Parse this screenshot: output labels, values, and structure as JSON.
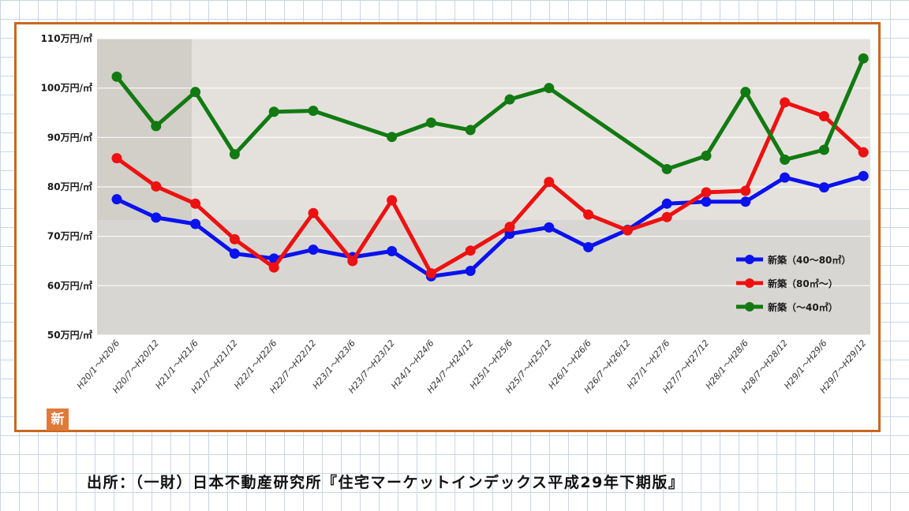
{
  "chart_data": {
    "type": "line",
    "title": "",
    "xlabel": "",
    "ylabel": "",
    "ylim": [
      50,
      110
    ],
    "y_ticks": [
      "50万円/㎡",
      "60万円/㎡",
      "70万円/㎡",
      "80万円/㎡",
      "90万円/㎡",
      "100万円/㎡",
      "110万円/㎡"
    ],
    "y_tick_values": [
      50,
      60,
      70,
      80,
      90,
      100,
      110
    ],
    "categories": [
      "H20/1～H20/6",
      "H20/7～H20/12",
      "H21/1～H21/6",
      "H21/7～H21/12",
      "H22/1～H22/6",
      "H22/7～H22/12",
      "H23/1～H23/6",
      "H23/7～H23/12",
      "H24/1～H24/6",
      "H24/7～H24/12",
      "H25/1～H25/6",
      "H25/7～H25/12",
      "H26/1～H26/6",
      "H26/7～H26/12",
      "H27/1～H27/6",
      "H27/7～H27/12",
      "H28/1～H28/6",
      "H28/7～H28/12",
      "H29/1～H29/6",
      "H29/7～H29/12"
    ],
    "series": [
      {
        "name": "新築（40～80㎡）",
        "color": "#0a12ee",
        "values": [
          77.5,
          73.8,
          72.5,
          66.5,
          65.5,
          67.3,
          65.8,
          67,
          61.9,
          63,
          70.5,
          71.8,
          67.8,
          71.3,
          76.6,
          77,
          77,
          81.9,
          79.9,
          82.2
        ]
      },
      {
        "name": "新築（80㎡～）",
        "color": "#ee1111",
        "values": [
          85.8,
          80.1,
          76.6,
          69.4,
          63.7,
          74.7,
          65,
          77.3,
          62.5,
          67.1,
          71.9,
          81,
          74.4,
          71.2,
          73.9,
          78.9,
          79.2,
          97.1,
          94.3,
          87
        ]
      },
      {
        "name": "新築（～40㎡）",
        "color": "#127a12",
        "values": [
          102.3,
          92.3,
          99.2,
          86.6,
          95.2,
          95.4,
          null,
          90.1,
          93,
          91.5,
          97.7,
          100,
          null,
          null,
          83.6,
          86.3,
          99.2,
          85.5,
          87.5,
          106
        ]
      }
    ],
    "legend_position": "bottom-right",
    "grid": true
  },
  "badge": "新",
  "source_note": "出所：（一財）日本不動産研究所『住宅マーケットインデックス平成29年下期版』"
}
